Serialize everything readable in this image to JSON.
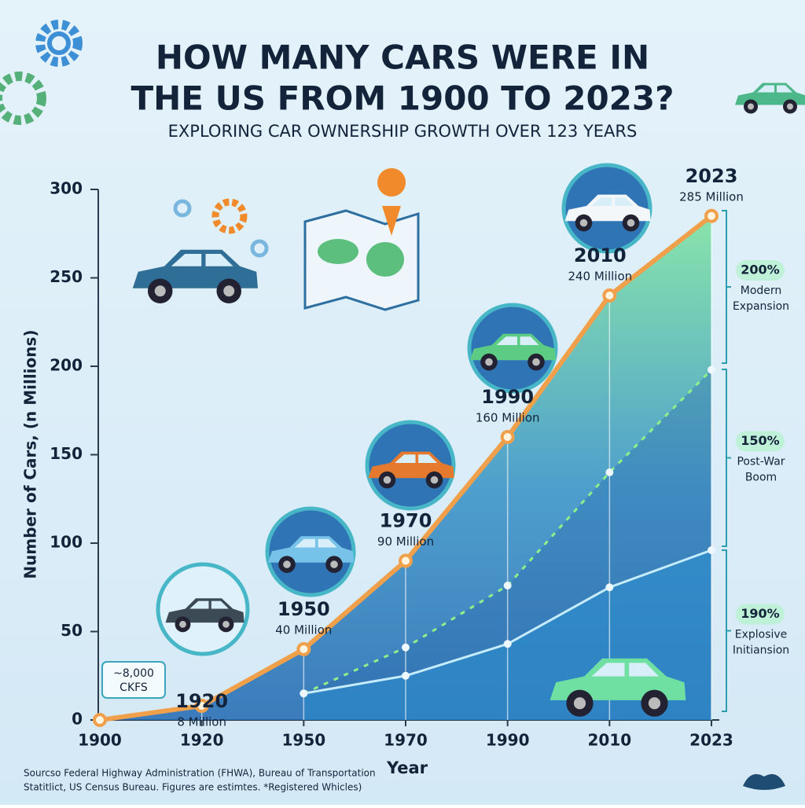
{
  "chart_data": {
    "type": "line",
    "title": [
      "HOW MANY CARS WERE IN",
      "THE US FROM 1900 TO 2023?"
    ],
    "subtitle": "EXPLORING CAR OWNERSHIP GROWTH OVER 123 YEARS",
    "y_label": "Number of Cars, (n Millions)",
    "x_label": "Year",
    "categories": [
      "1900",
      "1920",
      "1950",
      "1970",
      "1990",
      "2010",
      "2023"
    ],
    "values": [
      0.008,
      8,
      40,
      90,
      160,
      240,
      285
    ],
    "value_labels": [
      null,
      "8 Million",
      "40 Million",
      "90 Million",
      "160 Million",
      "240 Million",
      "285 Million"
    ],
    "color": "#f0a04b",
    "layers": [
      {
        "color": "#8ef08a",
        "values": [
          null,
          null,
          15,
          41,
          76,
          140,
          198
        ]
      },
      {
        "color": "#c6ecff",
        "values": [
          null,
          null,
          15,
          25,
          43,
          75,
          96
        ]
      }
    ],
    "ylim": [
      0,
      300
    ],
    "yticks": [
      0,
      50,
      100,
      150,
      200,
      250,
      300
    ],
    "callout": [
      "~8,000",
      "CKFS"
    ],
    "brackets": [
      {
        "label": "200%",
        "text": [
          "Modern",
          "Expansion"
        ]
      },
      {
        "label": "150%",
        "text": [
          "Post-War",
          "Boom"
        ]
      },
      {
        "label": "190%",
        "text": [
          "Explosive",
          "Initiansion"
        ]
      }
    ],
    "source": [
      "Sourcso Federal Highway Administration (FHWA), Bureau of Transportation",
      "Statitlict, US Census Bureau. Figures are estimtes. *Registered Whicles)"
    ]
  }
}
